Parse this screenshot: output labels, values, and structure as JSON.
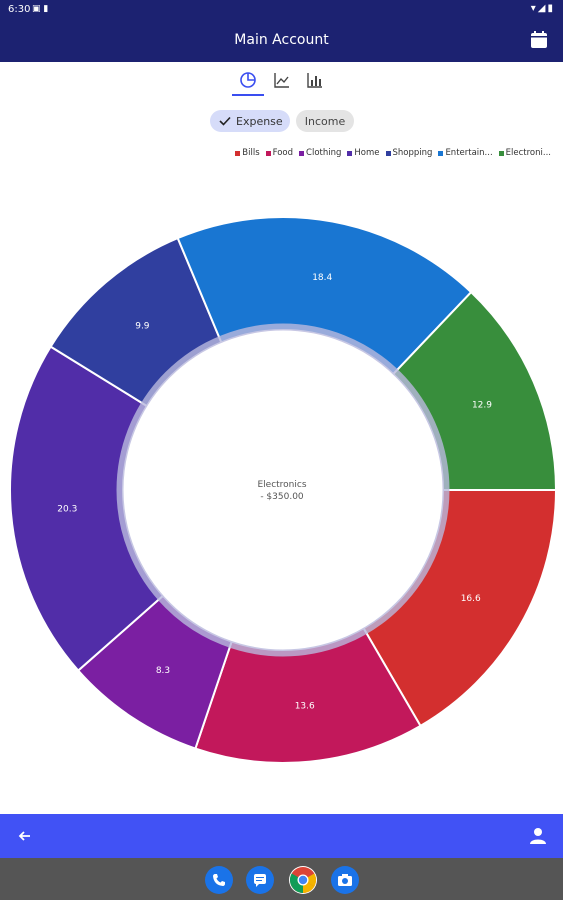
{
  "status_bar": {
    "time": "6:30"
  },
  "app_bar": {
    "title": "Main Account"
  },
  "tabs": [
    {
      "name": "pie-chart-icon",
      "selected": true
    },
    {
      "name": "line-chart-icon",
      "selected": false
    },
    {
      "name": "bar-chart-icon",
      "selected": false
    }
  ],
  "filters": {
    "expense_label": "Expense",
    "income_label": "Income",
    "selected": "Expense"
  },
  "legend": [
    {
      "label": "Bills",
      "color": "#d32f2f"
    },
    {
      "label": "Food",
      "color": "#c2185b"
    },
    {
      "label": "Clothing",
      "color": "#7b1fa2"
    },
    {
      "label": "Home",
      "color": "#512da8"
    },
    {
      "label": "Shopping",
      "color": "#303f9f"
    },
    {
      "label": "Entertain...",
      "color": "#1976d2"
    },
    {
      "label": "Electroni...",
      "color": "#388e3c"
    }
  ],
  "chart_data": {
    "type": "pie",
    "style": "donut",
    "center_label": {
      "category": "Electronics",
      "amount": "- $350.00"
    },
    "slices": [
      {
        "label": "Bills",
        "value": 16.6,
        "color": "#d32f2f"
      },
      {
        "label": "Food",
        "value": 13.6,
        "color": "#c2185b"
      },
      {
        "label": "Clothing",
        "value": 8.3,
        "color": "#7b1fa2"
      },
      {
        "label": "Home",
        "value": 20.3,
        "color": "#512da8"
      },
      {
        "label": "Shopping",
        "value": 9.9,
        "color": "#303f9f"
      },
      {
        "label": "Entertainment",
        "value": 18.4,
        "color": "#1976d2"
      },
      {
        "label": "Electronics",
        "value": 12.9,
        "color": "#388e3c"
      }
    ]
  },
  "dock": [
    {
      "name": "phone-app",
      "color": "#1a73e8"
    },
    {
      "name": "messages-app",
      "color": "#1a73e8"
    },
    {
      "name": "chrome-app",
      "color": "#ffffff"
    },
    {
      "name": "camera-app",
      "color": "#1a73e8"
    }
  ]
}
